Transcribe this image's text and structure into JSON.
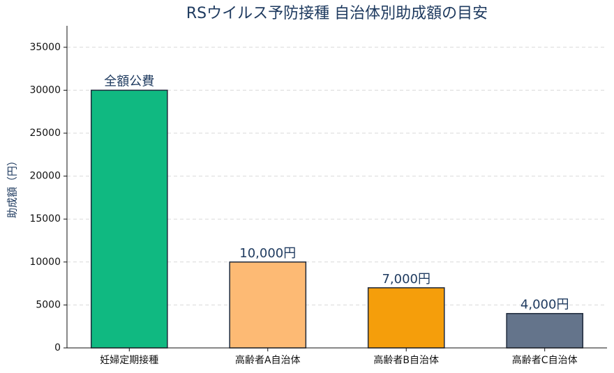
{
  "chart_data": {
    "type": "bar",
    "title": "RSウイルス予防接種 自治体別助成額の目安",
    "y_label": "助成額（円）",
    "categories": [
      "妊婦定期接種",
      "高齢者A自治体",
      "高齢者B自治体",
      "高齢者C自治体"
    ],
    "values": [
      30000,
      10000,
      7000,
      4000
    ],
    "value_labels": [
      "全額公費",
      "10,000円",
      "7,000円",
      "4,000円"
    ],
    "colors": [
      "#10b981",
      "#fdba74",
      "#f59e0b",
      "#64748b"
    ],
    "ylim": [
      0,
      37500
    ],
    "yticks": [
      0,
      5000,
      10000,
      15000,
      20000,
      25000,
      30000,
      35000
    ],
    "grid": true
  }
}
